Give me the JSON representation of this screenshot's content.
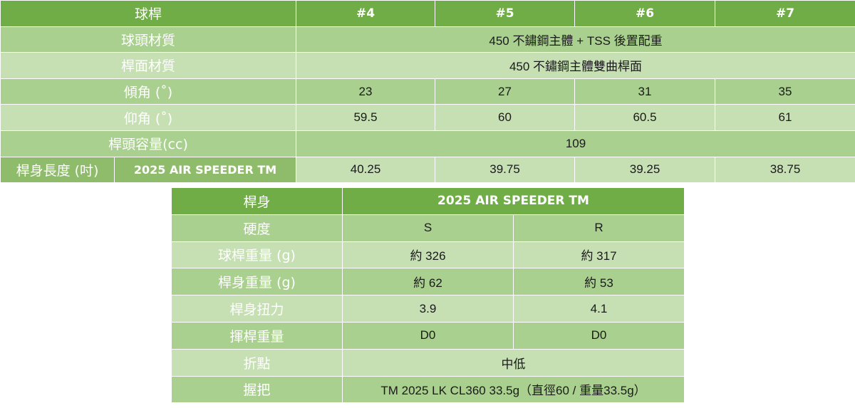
{
  "spec": {
    "header": {
      "label": "球桿",
      "models": [
        "#4",
        "#5",
        "#6",
        "#7"
      ]
    },
    "head_material": {
      "label": "球頭材質",
      "value": "450 不鏽鋼主體 + TSS 後置配重"
    },
    "face_material": {
      "label": "桿面材質",
      "value": "450 不鏽鋼主體雙曲桿面"
    },
    "loft": {
      "label": "傾角 (˚)",
      "values": [
        "23",
        "27",
        "31",
        "35"
      ]
    },
    "lie": {
      "label": "仰角 (˚)",
      "values": [
        "59.5",
        "60",
        "60.5",
        "61"
      ]
    },
    "volume": {
      "label": "桿頭容量(cc)",
      "value": "109"
    },
    "length": {
      "label": "桿身長度 (吋)",
      "shaft": "2025 AIR SPEEDER TM",
      "values": [
        "40.25",
        "39.75",
        "39.25",
        "38.75"
      ]
    }
  },
  "shaft": {
    "header": {
      "label": "桿身",
      "value": "2025 AIR SPEEDER TM"
    },
    "flex": {
      "label": "硬度",
      "values": [
        "S",
        "R"
      ]
    },
    "club_weight": {
      "label": "球桿重量 (g)",
      "values": [
        "約 326",
        "約 317"
      ]
    },
    "shaft_weight": {
      "label": "桿身重量 (g)",
      "values": [
        "約 62",
        "約 53"
      ]
    },
    "torque": {
      "label": "桿身扭力",
      "values": [
        "3.9",
        "4.1"
      ]
    },
    "swing_weight": {
      "label": "揮桿重量",
      "values": [
        "D0",
        "D0"
      ]
    },
    "kick_point": {
      "label": "折點",
      "value": "中低"
    },
    "grip": {
      "label": "握把",
      "value": "TM 2025 LK CL360 33.5g（直徑60 / 重量33.5g）"
    }
  }
}
